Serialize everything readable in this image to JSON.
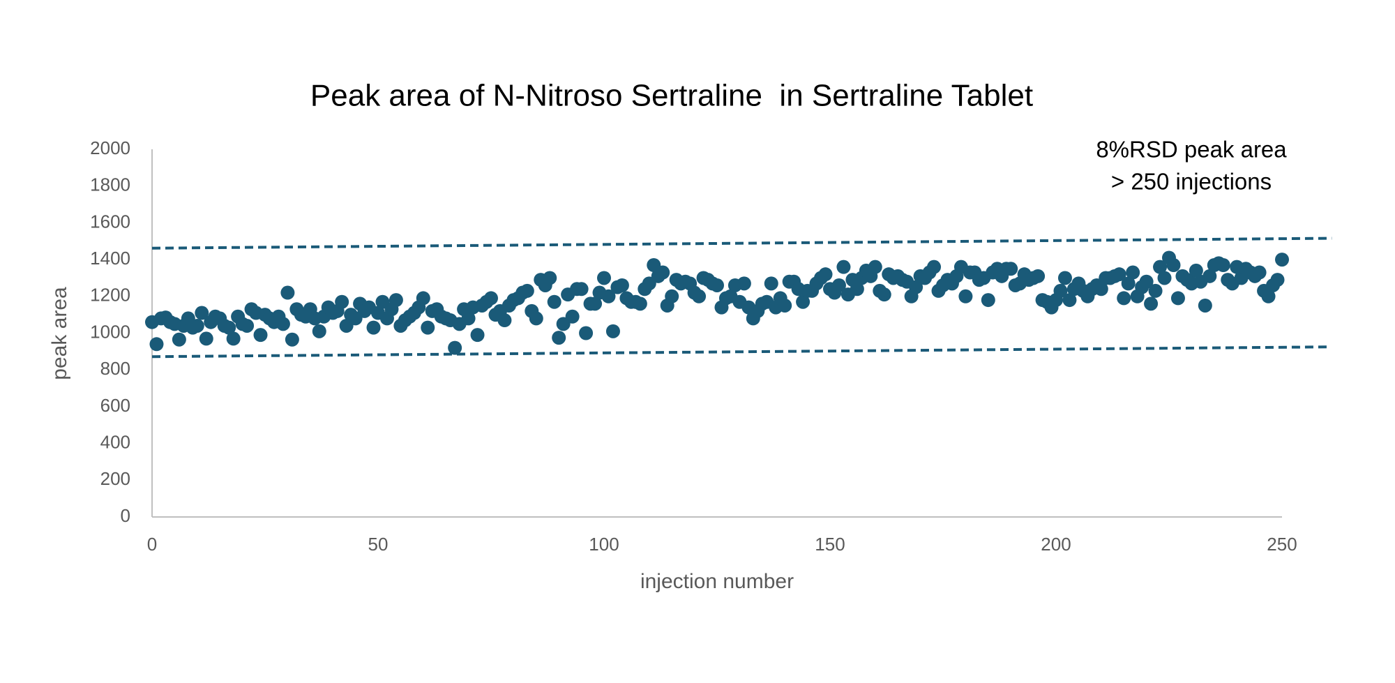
{
  "chart_data": {
    "type": "scatter",
    "title": "Peak area of N-Nitroso Sertraline  in Sertraline Tablet",
    "x_label": "injection number",
    "y_label": "peak area",
    "annotations": [
      "8%RSD peak area",
      "> 250 injections"
    ],
    "color": "#1a5a78",
    "xlim": [
      0,
      250
    ],
    "xticks": [
      0,
      50,
      100,
      150,
      200,
      250
    ],
    "ylim": [
      0,
      2000
    ],
    "yticks": [
      0,
      200,
      400,
      600,
      800,
      1000,
      1200,
      1400,
      1600,
      1800,
      2000
    ],
    "grid": false,
    "x": [
      0,
      1,
      2,
      3,
      4,
      5,
      6,
      7,
      8,
      9,
      10,
      11,
      12,
      13,
      14,
      15,
      16,
      17,
      18,
      19,
      20,
      21,
      22,
      23,
      24,
      25,
      26,
      27,
      28,
      29,
      30,
      31,
      32,
      33,
      34,
      35,
      36,
      37,
      38,
      39,
      40,
      41,
      42,
      43,
      44,
      45,
      46,
      47,
      48,
      49,
      50,
      51,
      52,
      53,
      54,
      55,
      56,
      57,
      58,
      59,
      60,
      61,
      62,
      63,
      64,
      65,
      66,
      67,
      68,
      69,
      70,
      71,
      72,
      73,
      74,
      75,
      76,
      77,
      78,
      79,
      80,
      81,
      82,
      83,
      84,
      85,
      86,
      87,
      88,
      89,
      90,
      91,
      92,
      93,
      94,
      95,
      96,
      97,
      98,
      99,
      100,
      101,
      102,
      103,
      104,
      105,
      106,
      107,
      108,
      109,
      110,
      111,
      112,
      113,
      114,
      115,
      116,
      117,
      118,
      119,
      120,
      121,
      122,
      123,
      124,
      125,
      126,
      127,
      128,
      129,
      130,
      131,
      132,
      133,
      134,
      135,
      136,
      137,
      138,
      139,
      140,
      141,
      142,
      143,
      144,
      145,
      146,
      147,
      148,
      149,
      150,
      151,
      152,
      153,
      154,
      155,
      156,
      157,
      158,
      159,
      160,
      161,
      162,
      163,
      164,
      165,
      166,
      167,
      168,
      169,
      170,
      171,
      172,
      173,
      174,
      175,
      176,
      177,
      178,
      179,
      180,
      181,
      182,
      183,
      184,
      185,
      186,
      187,
      188,
      189,
      190,
      191,
      192,
      193,
      194,
      195,
      196,
      197,
      198,
      199,
      200,
      201,
      202,
      203,
      204,
      205,
      206,
      207,
      208,
      209,
      210,
      211,
      212,
      213,
      214,
      215,
      216,
      217,
      218,
      219,
      220,
      221,
      222,
      223,
      224,
      225,
      226,
      227,
      228,
      229,
      230,
      231,
      232,
      233,
      234,
      235,
      236,
      237,
      238,
      239,
      240,
      241,
      242,
      243,
      244,
      245,
      246,
      247,
      248,
      249,
      250
    ],
    "values": [
      1060,
      940,
      1080,
      1085,
      1060,
      1050,
      965,
      1040,
      1080,
      1030,
      1040,
      1110,
      970,
      1060,
      1090,
      1080,
      1040,
      1030,
      970,
      1090,
      1050,
      1040,
      1130,
      1110,
      990,
      1100,
      1080,
      1060,
      1090,
      1050,
      1220,
      965,
      1130,
      1100,
      1090,
      1130,
      1080,
      1010,
      1090,
      1140,
      1110,
      1120,
      1170,
      1040,
      1100,
      1080,
      1160,
      1120,
      1140,
      1030,
      1110,
      1170,
      1080,
      1130,
      1180,
      1040,
      1070,
      1090,
      1110,
      1140,
      1190,
      1030,
      1120,
      1130,
      1090,
      1080,
      1070,
      920,
      1050,
      1130,
      1080,
      1140,
      990,
      1150,
      1170,
      1190,
      1100,
      1120,
      1070,
      1150,
      1180,
      1190,
      1220,
      1230,
      1120,
      1080,
      1290,
      1260,
      1300,
      1170,
      975,
      1050,
      1210,
      1090,
      1240,
      1240,
      1000,
      1160,
      1160,
      1220,
      1300,
      1200,
      1010,
      1250,
      1260,
      1190,
      1170,
      1170,
      1160,
      1240,
      1270,
      1370,
      1310,
      1330,
      1150,
      1200,
      1290,
      1270,
      1280,
      1270,
      1220,
      1200,
      1300,
      1290,
      1270,
      1260,
      1140,
      1190,
      1200,
      1260,
      1170,
      1270,
      1140,
      1080,
      1120,
      1160,
      1170,
      1270,
      1140,
      1190,
      1150,
      1280,
      1280,
      1240,
      1170,
      1230,
      1230,
      1270,
      1300,
      1320,
      1240,
      1220,
      1260,
      1360,
      1210,
      1290,
      1240,
      1300,
      1340,
      1310,
      1360,
      1230,
      1210,
      1320,
      1300,
      1310,
      1290,
      1280,
      1200,
      1250,
      1310,
      1300,
      1330,
      1360,
      1230,
      1260,
      1290,
      1270,
      1310,
      1360,
      1200,
      1330,
      1330,
      1290,
      1300,
      1180,
      1330,
      1350,
      1310,
      1350,
      1350,
      1260,
      1270,
      1320,
      1290,
      1300,
      1310,
      1180,
      1170,
      1140,
      1180,
      1230,
      1300,
      1180,
      1240,
      1270,
      1230,
      1200,
      1240,
      1260,
      1240,
      1300,
      1300,
      1310,
      1320,
      1190,
      1270,
      1330,
      1200,
      1250,
      1280,
      1160,
      1230,
      1360,
      1300,
      1410,
      1370,
      1190,
      1310,
      1290,
      1270,
      1340,
      1280,
      1150,
      1310,
      1370,
      1380,
      1370,
      1290,
      1270,
      1360,
      1300,
      1350,
      1330,
      1310,
      1330,
      1230,
      1200,
      1260,
      1290,
      1400
    ],
    "reference_lines": [
      {
        "color": "#1a5a78",
        "x": [
          0,
          261
        ],
        "y": [
          1462,
          1516
        ]
      },
      {
        "color": "#1a5a78",
        "x": [
          0,
          260
        ],
        "y": [
          872,
          925
        ]
      }
    ]
  }
}
